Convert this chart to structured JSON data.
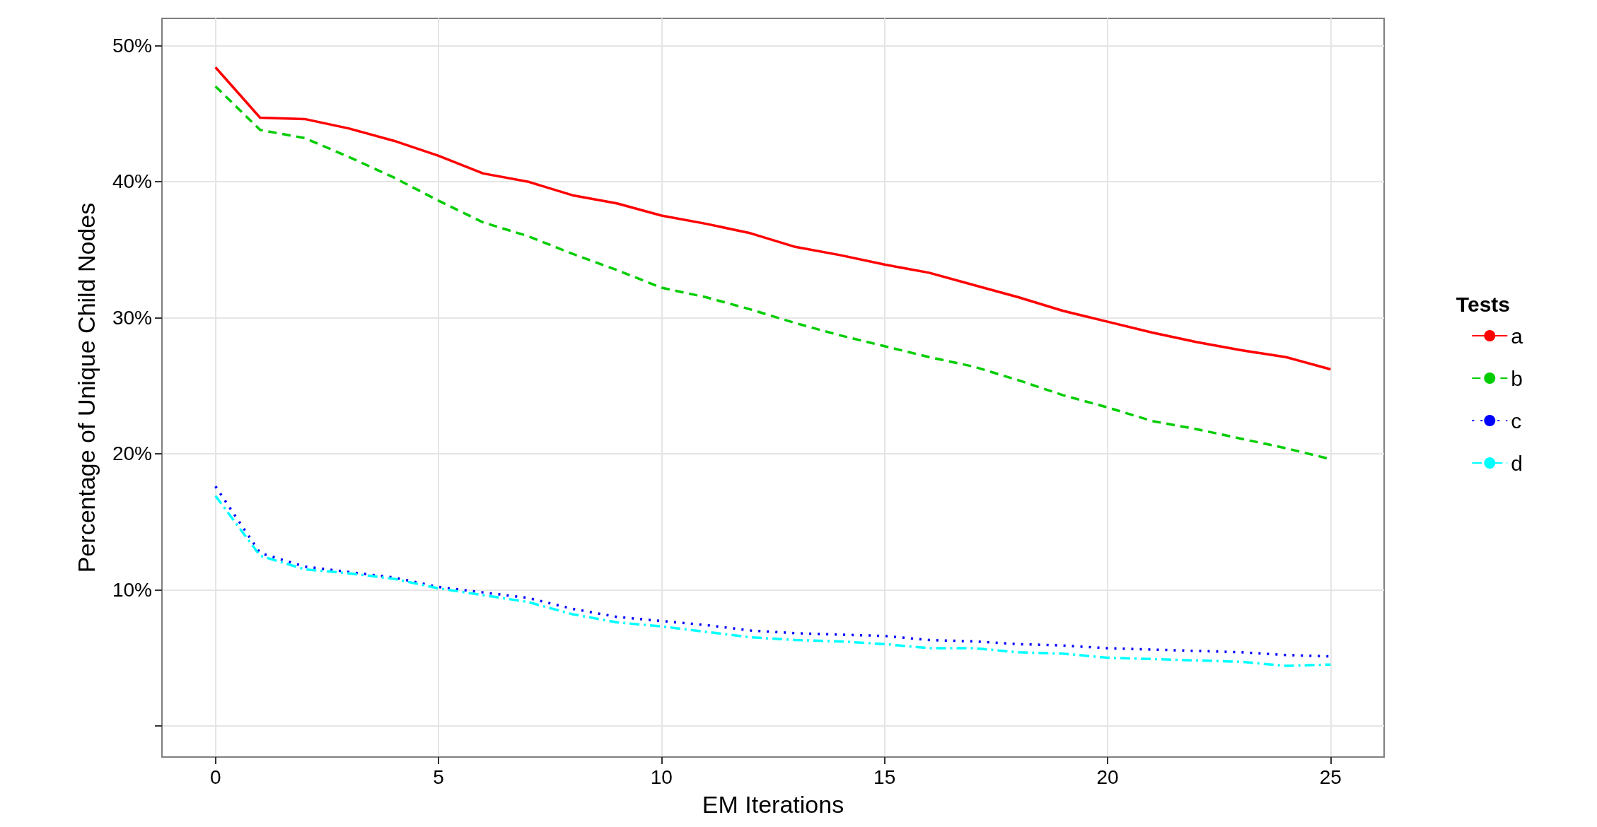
{
  "chart_data": {
    "type": "line",
    "xlabel": "EM Iterations",
    "ylabel": "Percentage of Unique Child Nodes",
    "legend_title": "Tests",
    "legend": "right",
    "grid": true,
    "x": [
      0,
      1,
      2,
      3,
      4,
      5,
      6,
      7,
      8,
      9,
      10,
      11,
      12,
      13,
      14,
      15,
      16,
      17,
      18,
      19,
      20,
      21,
      22,
      23,
      24,
      25
    ],
    "xlim": [
      -1.2,
      26.2
    ],
    "xticks": [
      0,
      5,
      10,
      15,
      20,
      25
    ],
    "ylim": [
      -2.3,
      52
    ],
    "yticks": [
      {
        "value": 0,
        "label": null
      },
      {
        "value": 10,
        "label": "10%"
      },
      {
        "value": 20,
        "label": "20%"
      },
      {
        "value": 30,
        "label": "30%"
      },
      {
        "value": 40,
        "label": "40%"
      },
      {
        "value": 50,
        "label": "50%"
      }
    ],
    "series": [
      {
        "name": "a",
        "color": "#ff0000",
        "line_style": "solid",
        "values": [
          48.4,
          44.7,
          44.6,
          43.9,
          43.0,
          41.9,
          40.6,
          40.0,
          39.0,
          38.4,
          37.5,
          36.9,
          36.2,
          35.2,
          34.6,
          33.9,
          33.3,
          32.4,
          31.5,
          30.5,
          29.7,
          28.9,
          28.2,
          27.6,
          27.1,
          26.2
        ]
      },
      {
        "name": "b",
        "color": "#00cd00",
        "line_style": "dashed",
        "values": [
          47.0,
          43.8,
          43.2,
          41.8,
          40.3,
          38.6,
          37.0,
          36.0,
          34.7,
          33.5,
          32.2,
          31.5,
          30.6,
          29.6,
          28.7,
          27.9,
          27.1,
          26.4,
          25.4,
          24.3,
          23.4,
          22.4,
          21.8,
          21.1,
          20.4,
          19.6
        ]
      },
      {
        "name": "c",
        "color": "#0000ff",
        "line_style": "dotted",
        "values": [
          17.6,
          12.7,
          11.7,
          11.3,
          10.9,
          10.2,
          9.8,
          9.4,
          8.6,
          8.0,
          7.7,
          7.4,
          7.0,
          6.8,
          6.7,
          6.6,
          6.3,
          6.2,
          6.0,
          5.9,
          5.7,
          5.6,
          5.5,
          5.4,
          5.2,
          5.1
        ]
      },
      {
        "name": "d",
        "color": "#00ffff",
        "line_style": "dashdot",
        "values": [
          16.9,
          12.5,
          11.5,
          11.2,
          10.8,
          10.1,
          9.6,
          9.1,
          8.2,
          7.6,
          7.3,
          6.9,
          6.5,
          6.3,
          6.2,
          6.0,
          5.7,
          5.7,
          5.4,
          5.3,
          5.0,
          4.9,
          4.8,
          4.7,
          4.4,
          4.5
        ]
      }
    ]
  }
}
